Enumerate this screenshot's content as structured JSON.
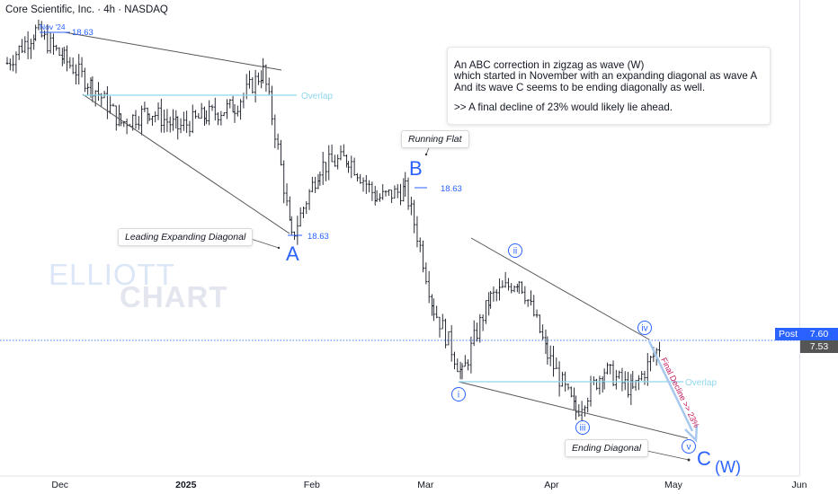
{
  "header": {
    "title": "Core Scientific, Inc. · 4h · NASDAQ"
  },
  "info_box": {
    "line1": "An ABC correction in zigzag as wave (W)",
    "line2": "which started in November with an expanding diagonal as wave A",
    "line3": "And its wave C seems to be ending diagonally as well.",
    "line4": ">> A final decline of 23% would likely lie ahead."
  },
  "callouts": {
    "leading_diagonal": "Leading Expanding Diagonal",
    "running_flat": "Running Flat",
    "ending_diagonal": "Ending Diagonal"
  },
  "watermark": {
    "line1": "ELLIOTT",
    "line2": "CHART"
  },
  "price_tags": {
    "post_label": "Post",
    "post_value": "7.60",
    "last_value": "7.53"
  },
  "colors": {
    "wave_blue": "#2962ff",
    "overlap_cyan": "#90d7ec",
    "bars": "#131722",
    "decline_arrow": "#a7c9ee",
    "decline_text": "#c2185b",
    "post_tag": "#2962ff",
    "last_tag": "#555555"
  },
  "chart_data": {
    "type": "bar",
    "symbol": "Core Scientific, Inc.",
    "interval": "4h",
    "exchange": "NASDAQ",
    "y_scale": "log",
    "ylim": [
      5.0,
      21.0
    ],
    "y_ticks": [
      "20.00",
      "18.00",
      "16.00",
      "15.00",
      "14.00",
      "13.00",
      "12.00",
      "11.00",
      "10.00",
      "9.00",
      "8.00",
      "7.20",
      "6.70",
      "6.30",
      "5.90",
      "5.55",
      "5.23"
    ],
    "x_ticks": [
      "Dec",
      "2025",
      "Feb",
      "Mar",
      "Apr",
      "May",
      "Jun"
    ],
    "approx_ohlc_path": [
      {
        "date": "2024-11-18",
        "close": 17.0
      },
      {
        "date": "2024-11-25",
        "close": 18.63
      },
      {
        "date": "2024-12-02",
        "close": 17.2
      },
      {
        "date": "2024-12-09",
        "close": 15.9
      },
      {
        "date": "2024-12-16",
        "close": 14.3
      },
      {
        "date": "2024-12-23",
        "close": 14.8
      },
      {
        "date": "2024-12-30",
        "close": 14.1
      },
      {
        "date": "2025-01-06",
        "close": 14.6
      },
      {
        "date": "2025-01-13",
        "close": 15.0
      },
      {
        "date": "2025-01-20",
        "close": 16.6
      },
      {
        "date": "2025-01-27",
        "close": 10.2
      },
      {
        "date": "2025-02-03",
        "close": 12.6
      },
      {
        "date": "2025-02-10",
        "close": 12.9
      },
      {
        "date": "2025-02-17",
        "close": 11.5
      },
      {
        "date": "2025-02-24",
        "close": 11.8
      },
      {
        "date": "2025-03-03",
        "close": 8.3
      },
      {
        "date": "2025-03-10",
        "close": 6.9
      },
      {
        "date": "2025-03-17",
        "close": 8.6
      },
      {
        "date": "2025-03-24",
        "close": 9.1
      },
      {
        "date": "2025-03-31",
        "close": 7.3
      },
      {
        "date": "2025-04-07",
        "close": 6.2
      },
      {
        "date": "2025-04-14",
        "close": 7.0
      },
      {
        "date": "2025-04-21",
        "close": 6.6
      },
      {
        "date": "2025-04-28",
        "close": 7.53
      }
    ],
    "price_labels": [
      {
        "text": "Nov '24",
        "kind": "date-tag"
      },
      {
        "text": "18.63",
        "kind": "level"
      },
      {
        "text": "18.63",
        "kind": "level"
      },
      {
        "text": "18.63",
        "kind": "level"
      }
    ],
    "waves": [
      {
        "label": "A",
        "type": "primary"
      },
      {
        "label": "B",
        "type": "primary"
      },
      {
        "label": "C",
        "type": "primary"
      },
      {
        "label": "(W)",
        "type": "degree"
      },
      {
        "label": "i",
        "type": "minor"
      },
      {
        "label": "ii",
        "type": "minor"
      },
      {
        "label": "iii",
        "type": "minor"
      },
      {
        "label": "iv",
        "type": "minor"
      },
      {
        "label": "v",
        "type": "minor"
      }
    ],
    "overlap_label": "Overlap",
    "decline_label": "Final Decline >> 23%",
    "current_price": 7.53,
    "post_price": 7.6
  }
}
